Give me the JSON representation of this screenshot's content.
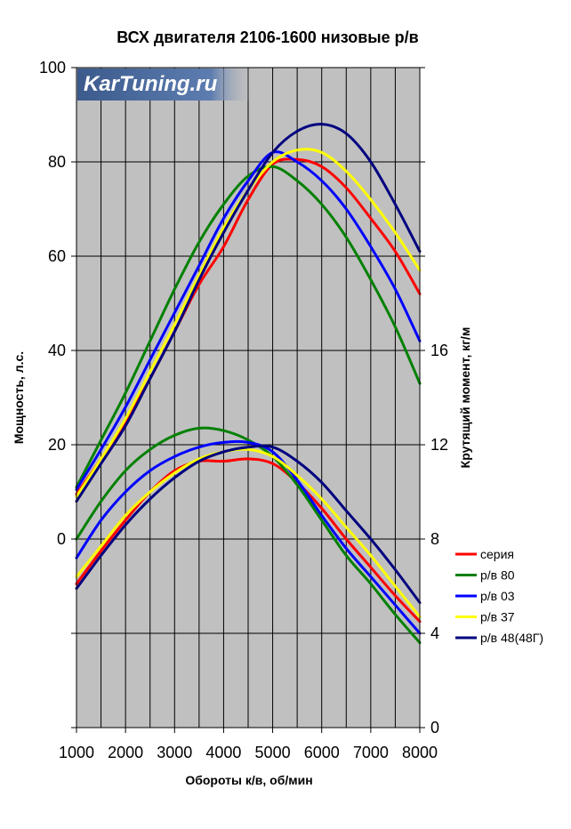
{
  "chart_data": {
    "type": "line",
    "title": "ВСХ двигателя 2106-1600 низовые р/в",
    "xlabel": "Обороты к/в, об/мин",
    "ylabel": "Мощность, л.с.",
    "y2label": "Крутящий момент, кг/м",
    "watermark": "KarTuning.ru",
    "xlim": [
      1000,
      8000
    ],
    "ylim": [
      -40,
      100
    ],
    "y2lim": [
      0,
      28
    ],
    "x_ticks": [
      "1000",
      "2000",
      "3000",
      "4000",
      "5000",
      "6000",
      "7000",
      "8000"
    ],
    "y_ticks": [
      "100",
      "80",
      "60",
      "40",
      "20",
      "0"
    ],
    "y2_ticks": [
      "16",
      "12",
      "8",
      "4",
      "0"
    ],
    "legend_position": "right",
    "colors": {
      "plot_bg": "#c0c0c0",
      "grid": "#000000",
      "серия": "#ff0000",
      "р/в 80": "#008000",
      "р/в 03": "#0000ff",
      "р/в 37": "#ffff00",
      "р/в 48(48Г)": "#000080"
    },
    "x": [
      1000,
      1500,
      2000,
      2500,
      3000,
      3500,
      4000,
      4500,
      5000,
      5500,
      6000,
      6500,
      7000,
      7500,
      8000
    ],
    "series": [
      {
        "name": "серия",
        "axis": "left",
        "group": "power",
        "values": [
          9.5,
          17,
          25,
          34,
          44,
          54,
          62,
          72,
          79.5,
          80.5,
          79,
          74.5,
          68,
          61,
          52
        ]
      },
      {
        "name": "р/в 80",
        "axis": "left",
        "group": "power",
        "values": [
          11,
          21,
          31,
          42,
          53,
          63,
          71,
          77,
          79,
          76,
          71,
          64,
          55,
          45,
          33
        ]
      },
      {
        "name": "р/в 03",
        "axis": "left",
        "group": "power",
        "values": [
          10.5,
          19,
          28,
          38,
          48,
          58,
          68,
          76,
          82,
          80,
          76,
          70,
          62,
          53,
          42
        ]
      },
      {
        "name": "р/в 37",
        "axis": "left",
        "group": "power",
        "values": [
          9,
          17,
          25.5,
          35.5,
          45.5,
          56,
          66,
          74,
          80,
          82.5,
          82,
          78,
          72,
          65,
          57
        ]
      },
      {
        "name": "р/в 48(48Г)",
        "axis": "left",
        "group": "power",
        "values": [
          8,
          16,
          24,
          34,
          44,
          55,
          65,
          74,
          82,
          86.5,
          88,
          86,
          80,
          71,
          61
        ]
      },
      {
        "name": "серия",
        "axis": "right",
        "group": "torque",
        "values": [
          6.1,
          7.5,
          8.8,
          10.0,
          10.9,
          11.3,
          11.3,
          11.4,
          11.2,
          10.4,
          9.3,
          8.0,
          6.8,
          5.6,
          4.5
        ]
      },
      {
        "name": "р/в 80",
        "axis": "right",
        "group": "torque",
        "values": [
          8.0,
          9.6,
          10.9,
          11.8,
          12.4,
          12.7,
          12.6,
          12.2,
          11.5,
          10.3,
          8.8,
          7.3,
          6.1,
          4.8,
          3.6
        ]
      },
      {
        "name": "р/в 03",
        "axis": "right",
        "group": "torque",
        "values": [
          7.2,
          8.8,
          10.0,
          10.9,
          11.5,
          11.9,
          12.1,
          12.1,
          11.7,
          10.5,
          9.0,
          7.6,
          6.4,
          5.2,
          4.0
        ]
      },
      {
        "name": "р/в 37",
        "axis": "right",
        "group": "torque",
        "values": [
          6.4,
          7.7,
          9.0,
          10.0,
          10.8,
          11.4,
          11.7,
          11.8,
          11.5,
          10.7,
          9.7,
          8.5,
          7.3,
          6.0,
          4.7
        ]
      },
      {
        "name": "р/в 48(48Г)",
        "axis": "right",
        "group": "torque",
        "values": [
          5.9,
          7.3,
          8.6,
          9.7,
          10.6,
          11.3,
          11.7,
          11.9,
          11.9,
          11.3,
          10.4,
          9.2,
          8.0,
          6.7,
          5.3
        ]
      }
    ],
    "legend": [
      "серия",
      "р/в 80",
      "р/в 03",
      "р/в 37",
      "р/в 48(48Г)"
    ]
  }
}
